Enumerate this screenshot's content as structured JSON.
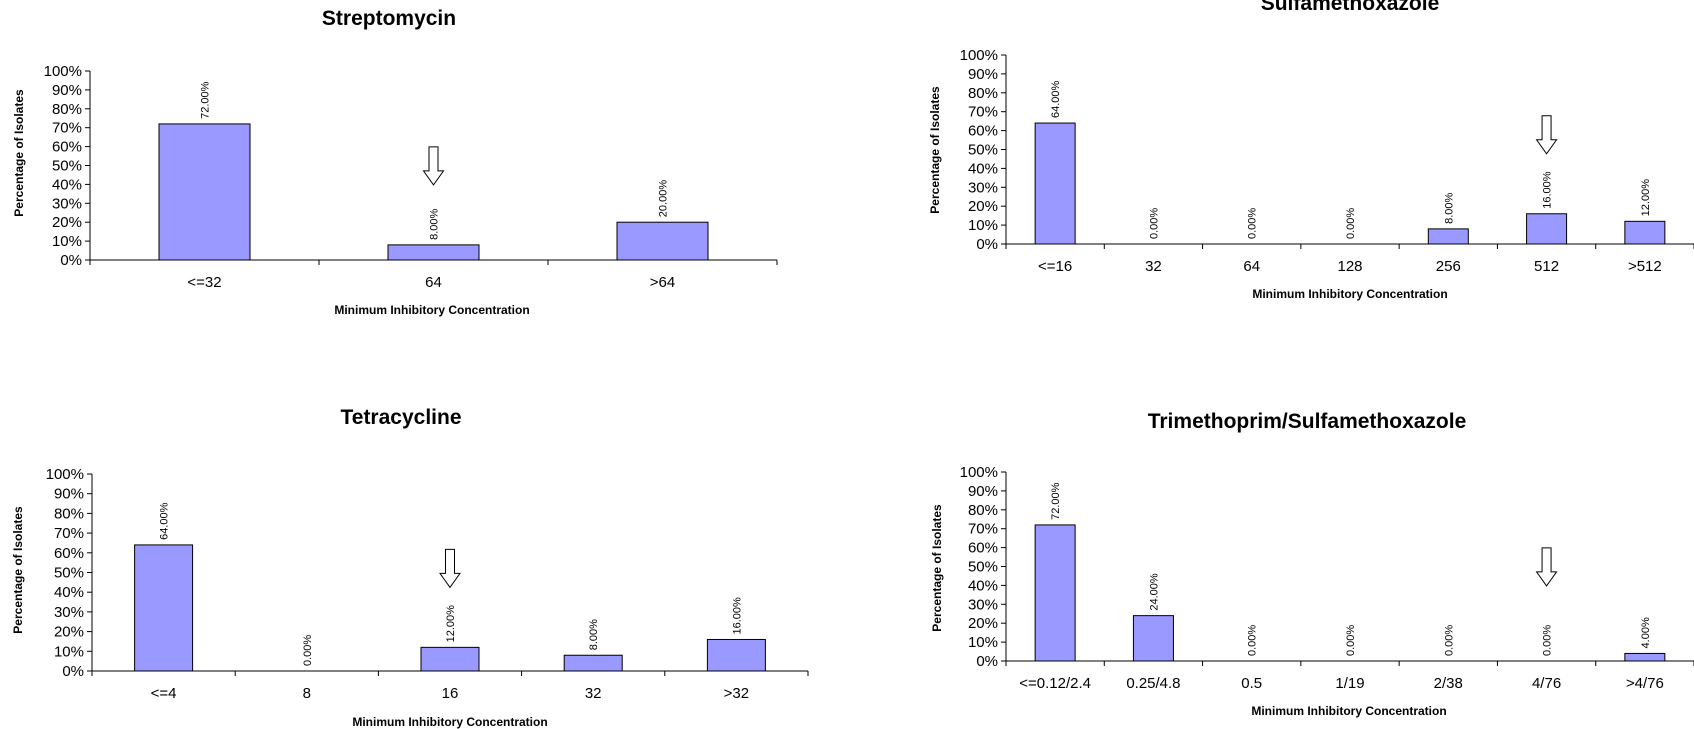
{
  "colors": {
    "bar_fill": "#9999ff",
    "bar_stroke": "#000000",
    "axis": "#000000",
    "arrow": "#000000"
  },
  "chart_data": [
    {
      "type": "bar",
      "title": "Streptomycin",
      "xlabel": "Minimum Inhibitory Concentration",
      "ylabel": "Percentage of Isolates",
      "categories": [
        "<=32",
        "64",
        ">64"
      ],
      "values": [
        72,
        8,
        20
      ],
      "data_labels": [
        "72.00%",
        "8.00%",
        "20.00%"
      ],
      "yticks": [
        "0%",
        "10%",
        "20%",
        "30%",
        "40%",
        "50%",
        "60%",
        "70%",
        "80%",
        "90%",
        "100%"
      ],
      "ylim": [
        0,
        100
      ],
      "breakpoint_arrow_category": "64",
      "grid": false,
      "legend": "none"
    },
    {
      "type": "bar",
      "title": "Sulfamethoxazole",
      "xlabel": "Minimum Inhibitory Concentration",
      "ylabel": "Percentage of Isolates",
      "categories": [
        "<=16",
        "32",
        "64",
        "128",
        "256",
        "512",
        ">512"
      ],
      "values": [
        64,
        0,
        0,
        0,
        8,
        16,
        12
      ],
      "data_labels": [
        "64.00%",
        "0.00%",
        "0.00%",
        "0.00%",
        "8.00%",
        "16.00%",
        "12.00%"
      ],
      "yticks": [
        "0%",
        "10%",
        "20%",
        "30%",
        "40%",
        "50%",
        "60%",
        "70%",
        "80%",
        "90%",
        "100%"
      ],
      "ylim": [
        0,
        100
      ],
      "breakpoint_arrow_category": "512",
      "grid": false,
      "legend": "none"
    },
    {
      "type": "bar",
      "title": "Tetracycline",
      "xlabel": "Minimum Inhibitory Concentration",
      "ylabel": "Percentage of Isolates",
      "categories": [
        "<=4",
        "8",
        "16",
        "32",
        ">32"
      ],
      "values": [
        64,
        0,
        12,
        8,
        16
      ],
      "data_labels": [
        "64.00%",
        "0.00%",
        "12.00%",
        "8.00%",
        "16.00%"
      ],
      "yticks": [
        "0%",
        "10%",
        "20%",
        "30%",
        "40%",
        "50%",
        "60%",
        "70%",
        "80%",
        "90%",
        "100%"
      ],
      "ylim": [
        0,
        100
      ],
      "breakpoint_arrow_category": "16",
      "grid": false,
      "legend": "none"
    },
    {
      "type": "bar",
      "title": "Trimethoprim/Sulfamethoxazole",
      "xlabel": "Minimum Inhibitory Concentration",
      "ylabel": "Percentage of Isolates",
      "categories": [
        "<=0.12/2.4",
        "0.25/4.8",
        "0.5",
        "1/19",
        "2/38",
        "4/76",
        ">4/76"
      ],
      "values": [
        72,
        24,
        0,
        0,
        0,
        0,
        4
      ],
      "data_labels": [
        "72.00%",
        "24.00%",
        "0.00%",
        "0.00%",
        "0.00%",
        "0.00%",
        "4.00%"
      ],
      "yticks": [
        "0%",
        "10%",
        "20%",
        "30%",
        "40%",
        "50%",
        "60%",
        "70%",
        "80%",
        "90%",
        "100%"
      ],
      "ylim": [
        0,
        100
      ],
      "breakpoint_arrow_category": "4/76",
      "grid": false,
      "legend": "none"
    }
  ]
}
